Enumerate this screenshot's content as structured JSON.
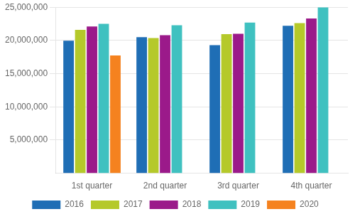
{
  "chart_data": {
    "type": "bar",
    "categories": [
      "1st quarter",
      "2nd quarter",
      "3rd quarter",
      "4th quarter"
    ],
    "series": [
      {
        "name": "2016",
        "color": "#1f6eb5",
        "values": [
          19950000,
          20500000,
          19300000,
          22200000
        ]
      },
      {
        "name": "2017",
        "color": "#b5c92a",
        "values": [
          21600000,
          20350000,
          20950000,
          22600000
        ]
      },
      {
        "name": "2018",
        "color": "#9b1a8a",
        "values": [
          22100000,
          20800000,
          21000000,
          23300000
        ]
      },
      {
        "name": "2019",
        "color": "#3fc1c0",
        "values": [
          22500000,
          22300000,
          22700000,
          25000000
        ]
      },
      {
        "name": "2020",
        "color": "#f5821f",
        "values": [
          17750000,
          null,
          null,
          null
        ]
      }
    ],
    "ylim": [
      0,
      25000000
    ],
    "yticks": [
      {
        "value": 5000000,
        "label": "5,000,000"
      },
      {
        "value": 10000000,
        "label": "10,000,000"
      },
      {
        "value": 15000000,
        "label": "15,000,000"
      },
      {
        "value": 20000000,
        "label": "20,000,000"
      },
      {
        "value": 25000000,
        "label": "25,000,000"
      }
    ],
    "grid": true,
    "legend": "bottom"
  }
}
